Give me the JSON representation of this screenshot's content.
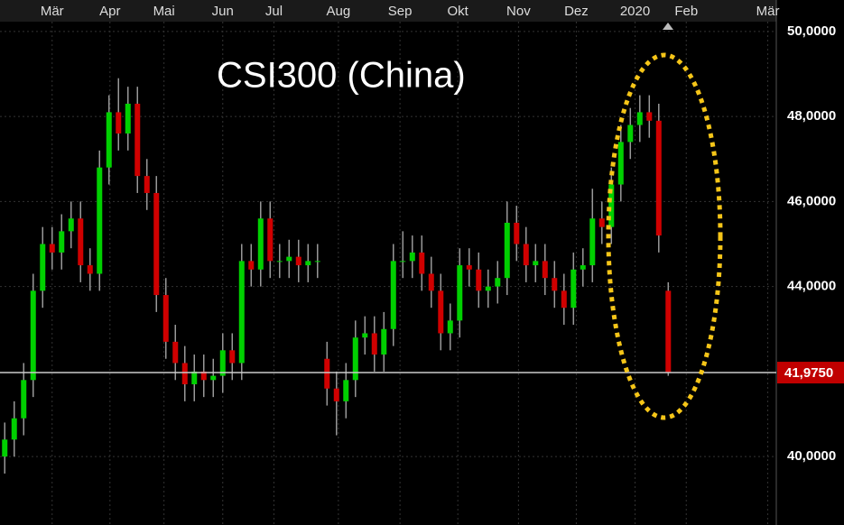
{
  "chart_data": {
    "type": "candlestick",
    "annotation": "CSI300 (China)",
    "up_color": "#00d000",
    "down_color": "#d00000",
    "x": [
      0,
      1,
      2,
      3,
      4,
      5,
      6,
      7,
      8,
      9,
      10,
      11,
      12,
      13,
      14,
      15,
      16,
      17,
      18,
      19,
      20,
      21,
      22,
      23,
      24,
      25,
      26,
      27,
      28,
      29,
      30,
      31,
      32,
      33,
      34,
      35,
      36,
      37,
      38,
      39,
      40,
      41,
      42,
      43,
      44,
      45,
      46,
      47,
      48,
      49,
      50,
      51,
      52,
      53,
      54,
      55,
      56,
      57,
      58,
      59,
      60,
      61,
      62,
      63,
      64,
      65,
      66,
      67,
      68,
      69,
      70
    ],
    "open": [
      40.0,
      40.4,
      40.9,
      41.8,
      43.9,
      45.0,
      44.8,
      45.3,
      45.6,
      44.5,
      44.3,
      46.8,
      48.1,
      47.6,
      48.3,
      46.6,
      46.2,
      43.8,
      42.7,
      42.2,
      41.7,
      42.0,
      41.8,
      41.9,
      42.5,
      42.2,
      44.6,
      44.4,
      45.6,
      44.6,
      44.6,
      44.7,
      44.5,
      44.6,
      42.3,
      41.6,
      41.3,
      41.8,
      42.8,
      42.9,
      42.4,
      43.0,
      44.6,
      44.6,
      44.8,
      44.3,
      43.9,
      42.9,
      43.2,
      44.5,
      44.4,
      43.9,
      44.0,
      44.2,
      45.5,
      45.0,
      44.5,
      44.6,
      44.2,
      43.9,
      43.5,
      44.4,
      44.5,
      45.6,
      45.4,
      46.4,
      47.4,
      47.8,
      48.1,
      47.9,
      43.9
    ],
    "high": [
      40.8,
      41.3,
      42.2,
      44.3,
      45.4,
      45.4,
      45.7,
      46.0,
      46.0,
      44.9,
      47.2,
      48.5,
      48.9,
      48.7,
      48.7,
      47.0,
      46.6,
      44.2,
      43.1,
      42.6,
      42.4,
      42.4,
      42.3,
      42.9,
      42.9,
      45.0,
      45.0,
      46.0,
      46.0,
      45.0,
      45.1,
      45.1,
      45.0,
      45.0,
      42.7,
      42.0,
      42.2,
      43.2,
      43.3,
      43.3,
      43.4,
      45.0,
      45.3,
      45.2,
      45.2,
      44.7,
      44.3,
      43.6,
      44.9,
      44.9,
      44.8,
      44.4,
      44.6,
      46.0,
      45.9,
      45.4,
      45.0,
      45.0,
      44.6,
      44.3,
      44.8,
      44.9,
      46.3,
      46.0,
      46.8,
      47.8,
      48.2,
      48.5,
      48.5,
      48.3,
      44.1
    ],
    "low": [
      39.6,
      40.0,
      40.5,
      41.4,
      43.5,
      44.4,
      44.4,
      44.9,
      44.1,
      43.9,
      43.9,
      46.4,
      47.2,
      47.2,
      46.2,
      45.8,
      43.4,
      42.3,
      41.8,
      41.3,
      41.3,
      41.4,
      41.4,
      41.5,
      41.8,
      41.8,
      44.0,
      44.0,
      44.2,
      44.2,
      44.2,
      44.1,
      44.1,
      44.2,
      41.2,
      40.5,
      40.9,
      41.4,
      42.4,
      42.0,
      42.0,
      42.6,
      44.2,
      44.2,
      43.9,
      43.5,
      42.5,
      42.5,
      42.8,
      44.0,
      43.5,
      43.5,
      43.6,
      43.8,
      44.6,
      44.1,
      44.1,
      43.8,
      43.5,
      43.1,
      43.1,
      44.0,
      44.1,
      45.0,
      45.0,
      46.0,
      47.0,
      47.4,
      47.5,
      44.8,
      41.9
    ],
    "close": [
      40.4,
      40.9,
      41.8,
      43.9,
      45.0,
      44.8,
      45.3,
      45.6,
      44.5,
      44.3,
      46.8,
      48.1,
      47.6,
      48.3,
      46.6,
      46.2,
      43.8,
      42.7,
      42.2,
      41.7,
      42.0,
      41.8,
      41.9,
      42.5,
      42.2,
      44.6,
      44.4,
      45.6,
      44.6,
      44.6,
      44.7,
      44.5,
      44.6,
      44.6,
      41.6,
      41.3,
      41.8,
      42.8,
      42.9,
      42.4,
      43.0,
      44.6,
      44.6,
      44.8,
      44.3,
      43.9,
      42.9,
      43.2,
      44.5,
      44.4,
      43.9,
      44.0,
      44.2,
      45.5,
      45.0,
      44.5,
      44.6,
      44.2,
      43.9,
      43.5,
      44.4,
      44.5,
      45.6,
      45.4,
      46.4,
      47.4,
      47.8,
      48.1,
      47.9,
      45.2,
      41.975
    ],
    "xlim": [
      -0.5,
      81.4
    ],
    "xticks": [
      {
        "value": 5.0,
        "label": "Mär"
      },
      {
        "value": 11.1,
        "label": "Apr"
      },
      {
        "value": 16.8,
        "label": "Mai"
      },
      {
        "value": 23.0,
        "label": "Jun"
      },
      {
        "value": 28.4,
        "label": "Jul"
      },
      {
        "value": 35.2,
        "label": "Aug"
      },
      {
        "value": 41.7,
        "label": "Sep"
      },
      {
        "value": 47.8,
        "label": "Okt"
      },
      {
        "value": 54.2,
        "label": "Nov"
      },
      {
        "value": 60.3,
        "label": "Dez"
      },
      {
        "value": 66.5,
        "label": "2020"
      },
      {
        "value": 71.9,
        "label": "Feb"
      },
      {
        "value": 80.5,
        "label": "Mär"
      }
    ],
    "ylim": [
      38.39,
      50.74
    ],
    "yticks": [
      {
        "value": 40,
        "label": "40,0000"
      },
      {
        "value": 44,
        "label": "44,0000"
      },
      {
        "value": 46,
        "label": "46,0000"
      },
      {
        "value": 48,
        "label": "48,0000"
      },
      {
        "value": 50,
        "label": "50,0000"
      }
    ],
    "last_price": {
      "value": 41.975,
      "label": "41,9750"
    },
    "grid": true
  }
}
